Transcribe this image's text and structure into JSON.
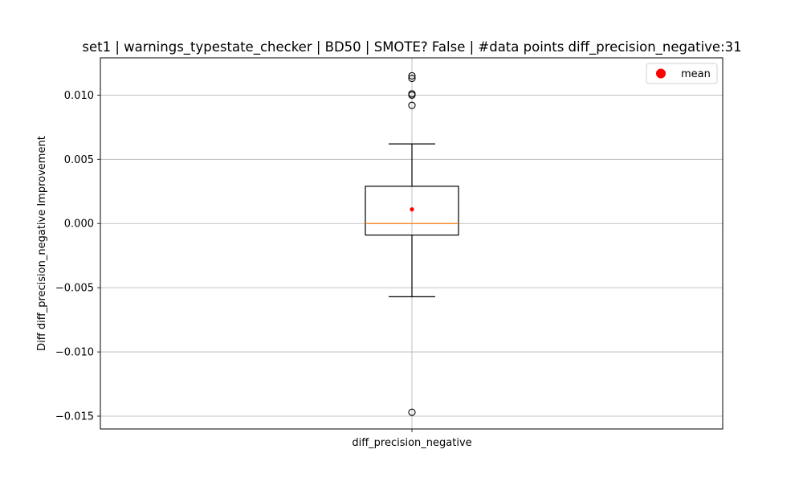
{
  "chart_data": {
    "type": "boxplot",
    "title": "set1 | warnings_typestate_checker | BD50 | SMOTE? False | #data points diff_precision_negative:31",
    "xlabel": "",
    "ylabel": "Diff diff_precision_negative Improvement",
    "categories": [
      "diff_precision_negative"
    ],
    "ylim": [
      -0.016,
      0.0129
    ],
    "yticks": [
      -0.015,
      -0.01,
      -0.005,
      0.0,
      0.005,
      0.01
    ],
    "ytick_labels": [
      "−0.015",
      "−0.010",
      "−0.005",
      "0.000",
      "0.005",
      "0.010"
    ],
    "grid": true,
    "legend": {
      "placement": "top-right",
      "entries": [
        "mean"
      ]
    },
    "boxes": [
      {
        "name": "diff_precision_negative",
        "whisker_low": -0.0057,
        "q1": -0.0009,
        "median": 0.0,
        "q3": 0.0029,
        "whisker_high": 0.0062,
        "mean": 0.0011,
        "outliers": [
          0.0115,
          0.0113,
          0.0101,
          0.01,
          0.0092,
          -0.0147
        ]
      }
    ],
    "colors": {
      "box": "#000000",
      "median": "#ff7f0e",
      "mean": "#ff0000",
      "grid": "#b0b0b0"
    }
  }
}
